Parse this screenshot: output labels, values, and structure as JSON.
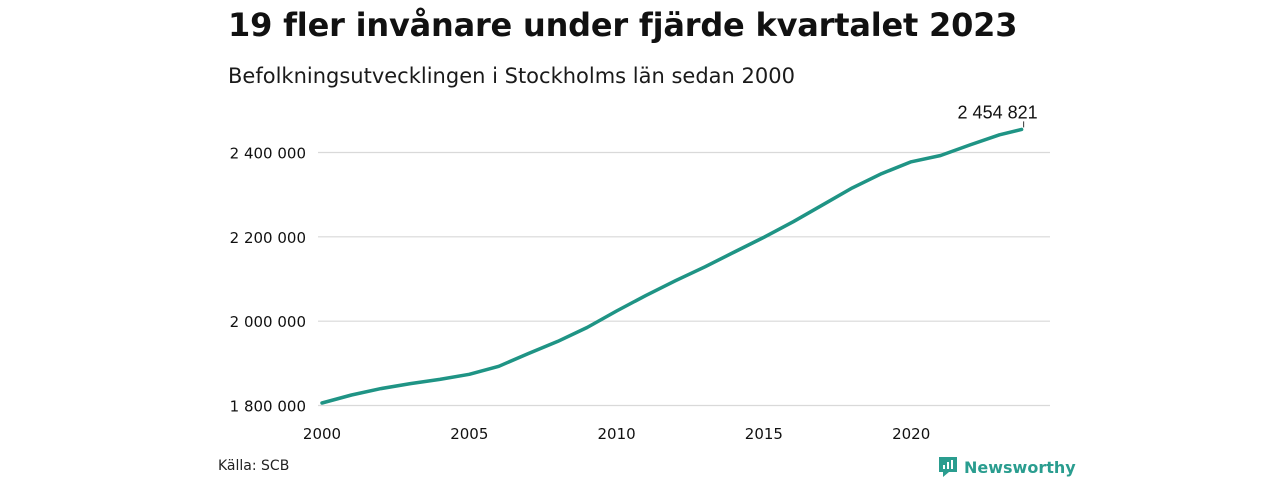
{
  "header": {
    "title": "19 fler invånare under fjärde kvartalet 2023",
    "subtitle": "Befolkningsutvecklingen i Stockholms län sedan 2000"
  },
  "footer": {
    "source": "Källa: SCB",
    "brand": "Newsworthy"
  },
  "colors": {
    "line": "#1f9485",
    "grid": "#d9d9d9",
    "brand": "#2a9d8f"
  },
  "chart_data": {
    "type": "line",
    "title": "19 fler invånare under fjärde kvartalet 2023",
    "subtitle": "Befolkningsutvecklingen i Stockholms län sedan 2000",
    "xlabel": "",
    "ylabel": "",
    "xlim": [
      2000,
      2024
    ],
    "ylim": [
      1795000,
      2460000
    ],
    "grid": "horizontal",
    "x_ticks": [
      2000,
      2005,
      2010,
      2015,
      2020
    ],
    "x_tick_labels": [
      "2000",
      "2005",
      "2010",
      "2015",
      "2020"
    ],
    "y_ticks": [
      1800000,
      2000000,
      2200000,
      2400000
    ],
    "y_tick_labels": [
      "1 800 000",
      "2 000 000",
      "2 200 000",
      "2 400 000"
    ],
    "end_label": "2 454 821",
    "series": [
      {
        "x": [
          2000,
          2001,
          2002,
          2003,
          2004,
          2005,
          2006,
          2007,
          2008,
          2009,
          2010,
          2011,
          2012,
          2013,
          2014,
          2015,
          2016,
          2017,
          2018,
          2019,
          2020,
          2021,
          2022,
          2023,
          2023.75
        ],
        "y": [
          1806000,
          1825000,
          1840000,
          1852000,
          1862000,
          1874000,
          1893000,
          1923000,
          1952000,
          1985000,
          2024000,
          2061000,
          2096000,
          2129000,
          2164000,
          2199000,
          2236000,
          2276000,
          2316000,
          2350000,
          2378000,
          2393000,
          2418000,
          2442000,
          2454821
        ]
      }
    ]
  }
}
